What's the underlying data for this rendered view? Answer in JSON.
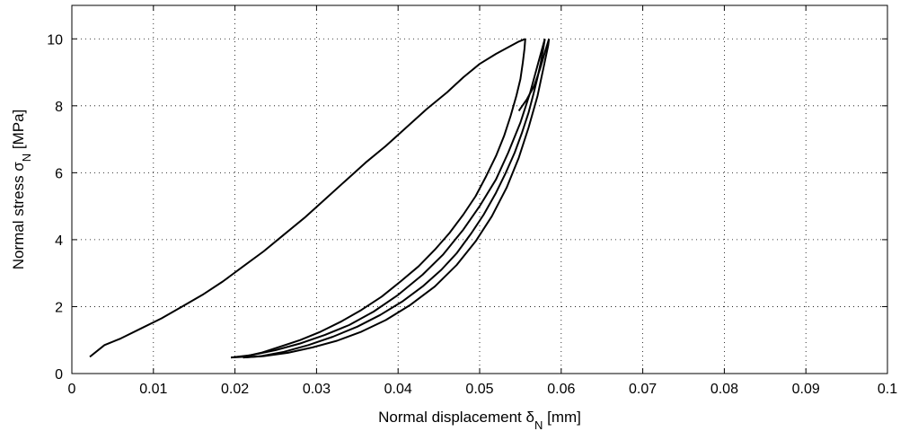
{
  "chart_data": {
    "type": "line",
    "title": "",
    "xlabel": {
      "main": "Normal displacement δ",
      "sub": "N",
      "unit": " [mm]"
    },
    "ylabel": {
      "main": "Normal stress σ",
      "sub": "N",
      "unit": " [MPa]"
    },
    "xlim": [
      0,
      0.1
    ],
    "ylim": [
      0,
      11
    ],
    "x_ticks": [
      0,
      0.01,
      0.02,
      0.03,
      0.04,
      0.05,
      0.06,
      0.07,
      0.08,
      0.09,
      0.1
    ],
    "x_tick_labels": [
      "0",
      "0.01",
      "0.02",
      "0.03",
      "0.04",
      "0.05",
      "0.06",
      "0.07",
      "0.08",
      "0.09",
      "0.1"
    ],
    "y_ticks": [
      0,
      2,
      4,
      6,
      8,
      10
    ],
    "y_tick_labels": [
      "0",
      "2",
      "4",
      "6",
      "8",
      "10"
    ],
    "grid": true,
    "line_color": "#000000",
    "series": [
      {
        "x": [
          0.0022,
          0.004,
          0.006,
          0.0085,
          0.011,
          0.0135,
          0.016,
          0.0185,
          0.021,
          0.0235,
          0.026,
          0.0285,
          0.031,
          0.0335,
          0.036,
          0.0385,
          0.041,
          0.0435,
          0.046,
          0.048,
          0.05,
          0.052,
          0.0535,
          0.0548,
          0.0556
        ],
        "y": [
          0.5,
          0.85,
          1.05,
          1.35,
          1.65,
          2.0,
          2.35,
          2.75,
          3.2,
          3.65,
          4.15,
          4.65,
          5.2,
          5.75,
          6.3,
          6.8,
          7.35,
          7.9,
          8.4,
          8.85,
          9.25,
          9.55,
          9.75,
          9.92,
          10.0
        ]
      },
      {
        "x": [
          0.0556,
          0.0555,
          0.0553,
          0.055,
          0.0545,
          0.0538,
          0.053,
          0.052,
          0.0508,
          0.0495,
          0.048,
          0.0463,
          0.0445,
          0.0425,
          0.0403,
          0.038,
          0.0355,
          0.033,
          0.0305,
          0.028,
          0.0255,
          0.0232,
          0.021,
          0.0195
        ],
        "y": [
          10.0,
          9.7,
          9.3,
          8.8,
          8.3,
          7.7,
          7.1,
          6.5,
          5.9,
          5.3,
          4.75,
          4.2,
          3.7,
          3.2,
          2.75,
          2.3,
          1.9,
          1.55,
          1.25,
          1.0,
          0.8,
          0.62,
          0.5,
          0.48
        ]
      },
      {
        "x": [
          0.0195,
          0.022,
          0.025,
          0.028,
          0.031,
          0.034,
          0.037,
          0.04,
          0.043,
          0.0455,
          0.048,
          0.05,
          0.052,
          0.0535,
          0.055,
          0.0562,
          0.0572,
          0.058
        ],
        "y": [
          0.48,
          0.55,
          0.7,
          0.9,
          1.15,
          1.45,
          1.85,
          2.35,
          2.95,
          3.55,
          4.3,
          5.0,
          5.8,
          6.6,
          7.5,
          8.4,
          9.3,
          10.0
        ]
      },
      {
        "x": [
          0.058,
          0.0578,
          0.0575,
          0.0571,
          0.0566,
          0.056,
          0.0552,
          0.0543,
          0.0532,
          0.052,
          0.0505,
          0.049,
          0.0472,
          0.0453,
          0.043,
          0.0405,
          0.0378,
          0.035,
          0.032,
          0.029,
          0.026,
          0.0232,
          0.021
        ],
        "y": [
          10.0,
          9.7,
          9.3,
          8.85,
          8.35,
          7.8,
          7.2,
          6.6,
          6.0,
          5.4,
          4.75,
          4.2,
          3.6,
          3.1,
          2.6,
          2.15,
          1.75,
          1.4,
          1.1,
          0.85,
          0.65,
          0.52,
          0.48
        ]
      },
      {
        "x": [
          0.021,
          0.0235,
          0.0265,
          0.0295,
          0.0325,
          0.0355,
          0.0385,
          0.0415,
          0.0445,
          0.0472,
          0.0495,
          0.0515,
          0.0533,
          0.0548,
          0.056,
          0.0571,
          0.0578,
          0.0584,
          0.0585
        ],
        "y": [
          0.48,
          0.52,
          0.62,
          0.78,
          0.98,
          1.25,
          1.6,
          2.05,
          2.6,
          3.25,
          3.95,
          4.7,
          5.55,
          6.45,
          7.35,
          8.3,
          9.1,
          9.8,
          10.0
        ]
      },
      {
        "x": [
          0.0585,
          0.058,
          0.0574,
          0.0567,
          0.0558,
          0.0548
        ],
        "y": [
          10.0,
          9.6,
          9.1,
          8.6,
          8.2,
          7.85
        ]
      }
    ]
  }
}
